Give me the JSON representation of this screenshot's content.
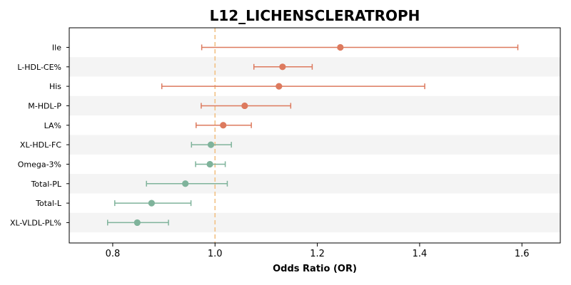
{
  "chart_data": {
    "type": "forest",
    "title": "L12_LICHENSCLERATROPH",
    "xlabel": "Odds Ratio (OR)",
    "xlim": [
      0.715,
      1.675
    ],
    "xticks": [
      0.8,
      1.0,
      1.2,
      1.4,
      1.6
    ],
    "reference_line": 1.0,
    "reference_color": "#f2c185",
    "colors": {
      "risk": "#dd7a5e",
      "protective": "#7fb39b",
      "band": "#f4f4f4"
    },
    "rows": [
      {
        "label": "Ile",
        "or": 1.245,
        "lo": 0.974,
        "hi": 1.592
      },
      {
        "label": "L-HDL-CE%",
        "or": 1.132,
        "lo": 1.076,
        "hi": 1.19
      },
      {
        "label": "His",
        "or": 1.125,
        "lo": 0.896,
        "hi": 1.41
      },
      {
        "label": "M-HDL-P",
        "or": 1.058,
        "lo": 0.973,
        "hi": 1.148
      },
      {
        "label": "LA%",
        "or": 1.016,
        "lo": 0.963,
        "hi": 1.071
      },
      {
        "label": "XL-HDL-FC",
        "or": 0.992,
        "lo": 0.954,
        "hi": 1.032
      },
      {
        "label": "Omega-3%",
        "or": 0.99,
        "lo": 0.962,
        "hi": 1.02
      },
      {
        "label": "Total-PL",
        "or": 0.942,
        "lo": 0.866,
        "hi": 1.024
      },
      {
        "label": "Total-L",
        "or": 0.876,
        "lo": 0.804,
        "hi": 0.953
      },
      {
        "label": "XL-VLDL-PL%",
        "or": 0.848,
        "lo": 0.79,
        "hi": 0.909
      }
    ]
  }
}
